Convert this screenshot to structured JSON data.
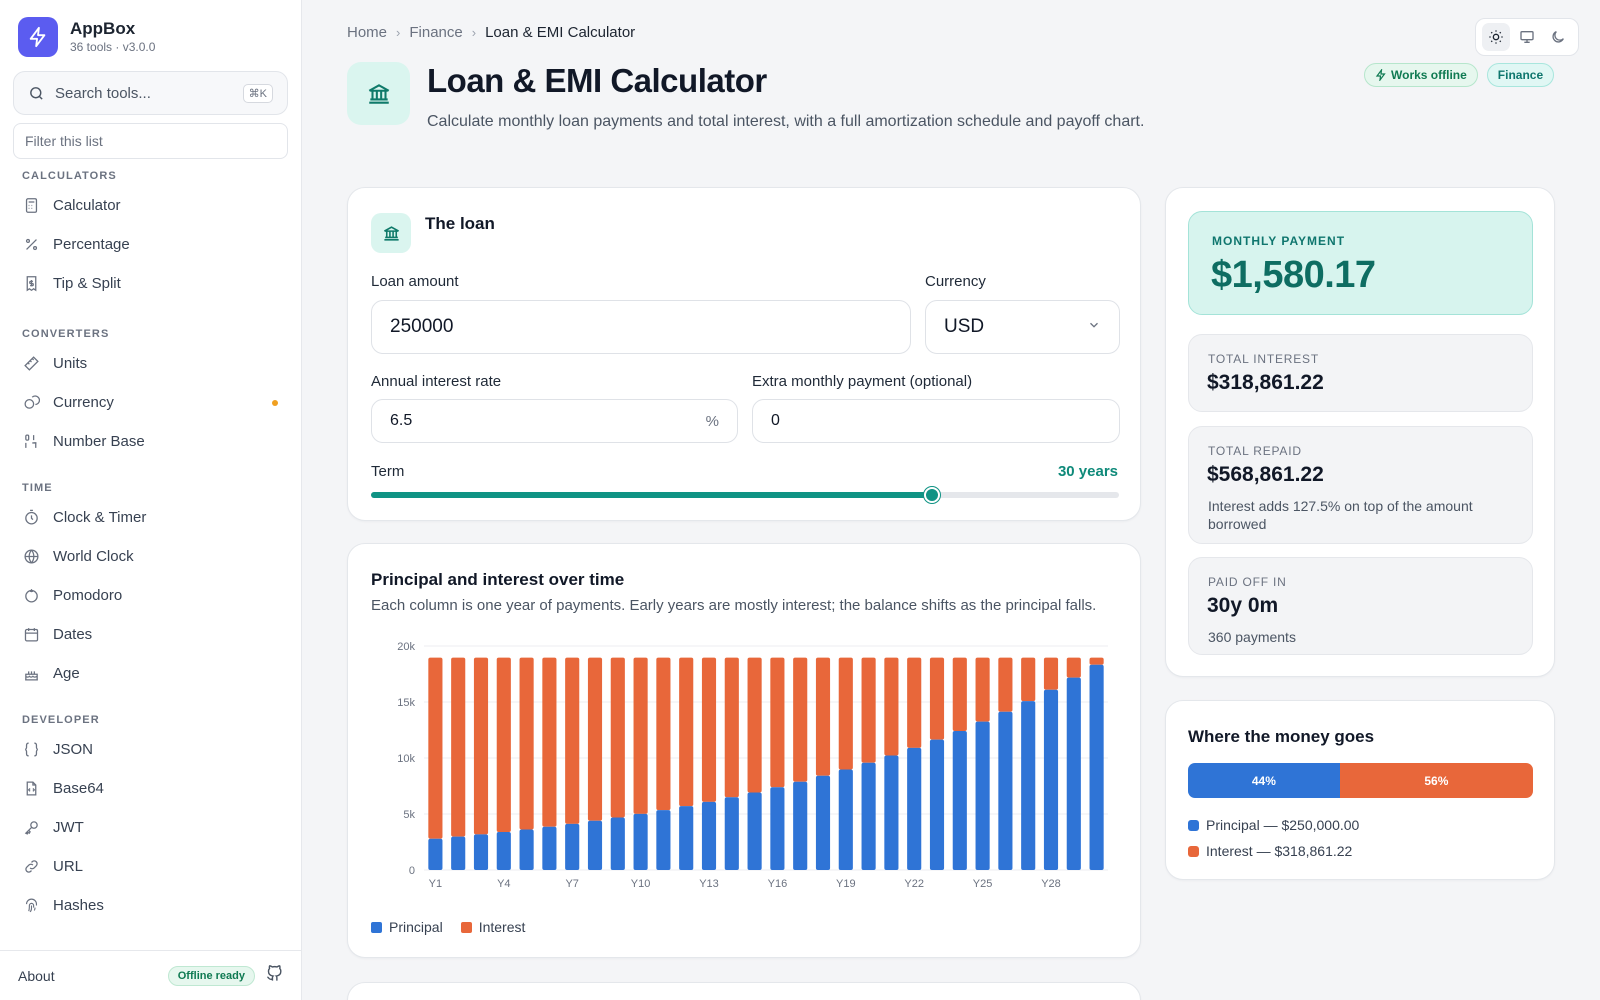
{
  "app": {
    "name": "AppBox",
    "subtitle": "36 tools · v3.0.0"
  },
  "sidebar": {
    "search_placeholder": "Search tools...",
    "search_shortcut": "⌘K",
    "filter_placeholder": "Filter this list",
    "groups": [
      {
        "heading": "CALCULATORS",
        "items": [
          {
            "label": "Calculator",
            "icon": "calculator-icon"
          },
          {
            "label": "Percentage",
            "icon": "percent-icon"
          },
          {
            "label": "Tip & Split",
            "icon": "receipt-icon"
          }
        ]
      },
      {
        "heading": "CONVERTERS",
        "items": [
          {
            "label": "Units",
            "icon": "ruler-icon"
          },
          {
            "label": "Currency",
            "icon": "coins-icon",
            "status_dot_color": "#f0a020"
          },
          {
            "label": "Number Base",
            "icon": "binary-icon"
          }
        ]
      },
      {
        "heading": "TIME",
        "items": [
          {
            "label": "Clock & Timer",
            "icon": "timer-icon"
          },
          {
            "label": "World Clock",
            "icon": "globe-icon"
          },
          {
            "label": "Pomodoro",
            "icon": "tomato-icon"
          },
          {
            "label": "Dates",
            "icon": "calendar-icon"
          },
          {
            "label": "Age",
            "icon": "cake-icon"
          }
        ]
      },
      {
        "heading": "DEVELOPER",
        "items": [
          {
            "label": "JSON",
            "icon": "braces-icon"
          },
          {
            "label": "Base64",
            "icon": "file-code-icon"
          },
          {
            "label": "JWT",
            "icon": "key-icon"
          },
          {
            "label": "URL",
            "icon": "link-icon"
          },
          {
            "label": "Hashes",
            "icon": "fingerprint-icon"
          }
        ]
      }
    ],
    "footer": {
      "about": "About",
      "badge": "Offline ready",
      "icon": "github-icon"
    }
  },
  "breadcrumb": [
    "Home",
    "Finance",
    "Loan & EMI Calculator"
  ],
  "theme_switch": {
    "options": [
      "light-icon",
      "system-icon",
      "dark-icon"
    ],
    "selected": "light"
  },
  "page": {
    "title": "Loan & EMI Calculator",
    "description": "Calculate monthly loan payments and total interest, with a full amortization schedule and payoff chart.",
    "tags": [
      "Works offline",
      "Finance"
    ],
    "icon": "bank-icon"
  },
  "loan_form": {
    "title": "The loan",
    "amount_label": "Loan amount",
    "amount_value": "250000",
    "currency_label": "Currency",
    "currency_value": "USD",
    "rate_label": "Annual interest rate",
    "rate_value": "6.5",
    "rate_suffix": "%",
    "extra_label": "Extra monthly payment (optional)",
    "extra_value": "0",
    "term_label": "Term",
    "term_value": "30 years",
    "term_years": 30,
    "term_max_years": 40
  },
  "chart": {
    "title": "Principal and interest over time",
    "subtitle": "Each column is one year of payments. Early years are mostly interest; the balance shifts as the principal falls.",
    "legend": [
      "Principal",
      "Interest"
    ],
    "colors": {
      "principal": "#2f74d6",
      "interest": "#e8673a"
    }
  },
  "chart_data": {
    "type": "bar",
    "stacked": true,
    "categories": [
      "Y1",
      "Y2",
      "Y3",
      "Y4",
      "Y5",
      "Y6",
      "Y7",
      "Y8",
      "Y9",
      "Y10",
      "Y11",
      "Y12",
      "Y13",
      "Y14",
      "Y15",
      "Y16",
      "Y17",
      "Y18",
      "Y19",
      "Y20",
      "Y21",
      "Y22",
      "Y23",
      "Y24",
      "Y25",
      "Y26",
      "Y27",
      "Y28",
      "Y29",
      "Y30"
    ],
    "tick_labels_shown": [
      "Y1",
      "Y4",
      "Y7",
      "Y10",
      "Y13",
      "Y16",
      "Y19",
      "Y22",
      "Y25",
      "Y28"
    ],
    "series": [
      {
        "name": "Principal",
        "values": [
          2793,
          2980,
          3180,
          3393,
          3620,
          3863,
          4122,
          4398,
          4693,
          5007,
          5343,
          5701,
          6083,
          6491,
          6925,
          7390,
          7885,
          8413,
          8977,
          9578,
          10220,
          10905,
          11636,
          12415,
          13247,
          14135,
          15082,
          16093,
          17172,
          18322
        ]
      },
      {
        "name": "Interest",
        "values": [
          16169,
          15982,
          15782,
          15569,
          15342,
          15099,
          14840,
          14564,
          14269,
          13955,
          13619,
          13261,
          12879,
          12471,
          12037,
          11572,
          11077,
          10549,
          9985,
          9384,
          8742,
          8057,
          7326,
          6547,
          5715,
          4827,
          3880,
          2869,
          1790,
          640
        ]
      }
    ],
    "ylim": [
      0,
      20000
    ],
    "yticks": [
      "0",
      "5k",
      "10k",
      "15k",
      "20k"
    ],
    "grid": true,
    "legend_position": "bottom-left"
  },
  "summary": {
    "monthly_label": "MONTHLY PAYMENT",
    "monthly_value": "$1,580.17",
    "total_interest_label": "TOTAL INTEREST",
    "total_interest_value": "$318,861.22",
    "total_repaid_label": "TOTAL REPAID",
    "total_repaid_value": "$568,861.22",
    "total_repaid_note": "Interest adds 127.5% on top of the amount borrowed",
    "paid_off_label": "PAID OFF IN",
    "paid_off_value": "30y 0m",
    "paid_off_note": "360 payments"
  },
  "money": {
    "title": "Where the money goes",
    "principal_pct": 44,
    "interest_pct": 56,
    "principal_pct_label": "44%",
    "interest_pct_label": "56%",
    "principal_legend": "Principal — $250,000.00",
    "interest_legend": "Interest — $318,861.22"
  }
}
